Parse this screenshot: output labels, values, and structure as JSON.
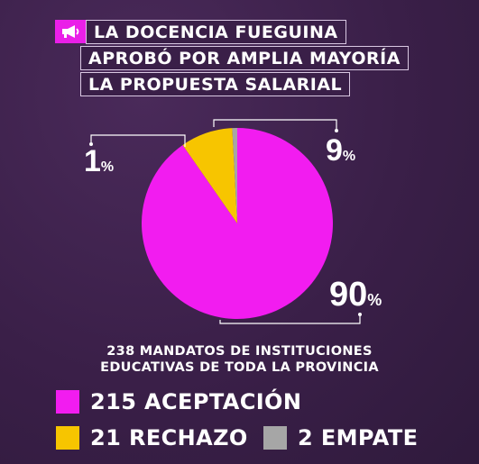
{
  "headline": {
    "lines": [
      "LA DOCENCIA FUEGUINA",
      "APROBÓ POR AMPLIA MAYORÍA",
      "LA PROPUESTA SALARIAL"
    ],
    "icon": "megaphone-icon"
  },
  "chart_data": {
    "type": "pie",
    "labels": [
      "ACEPTACIÓN",
      "RECHAZO",
      "EMPATE"
    ],
    "values": [
      215,
      21,
      2
    ],
    "percent_labels": [
      "90",
      "9",
      "1"
    ],
    "percent_sign": "%",
    "colors": [
      "#f21cf0",
      "#f7c500",
      "#a6a6a6"
    ],
    "title": ""
  },
  "subtitle": {
    "line1": "238 MANDATOS DE INSTITUCIONES",
    "line2": "EDUCATIVAS DE TODA LA PROVINCIA"
  },
  "legend": [
    {
      "text": "215 ACEPTACIÓN",
      "color": "#f21cf0"
    },
    {
      "text": "21 RECHAZO",
      "color": "#f7c500"
    },
    {
      "text": "2 EMPATE",
      "color": "#a6a6a6"
    }
  ]
}
